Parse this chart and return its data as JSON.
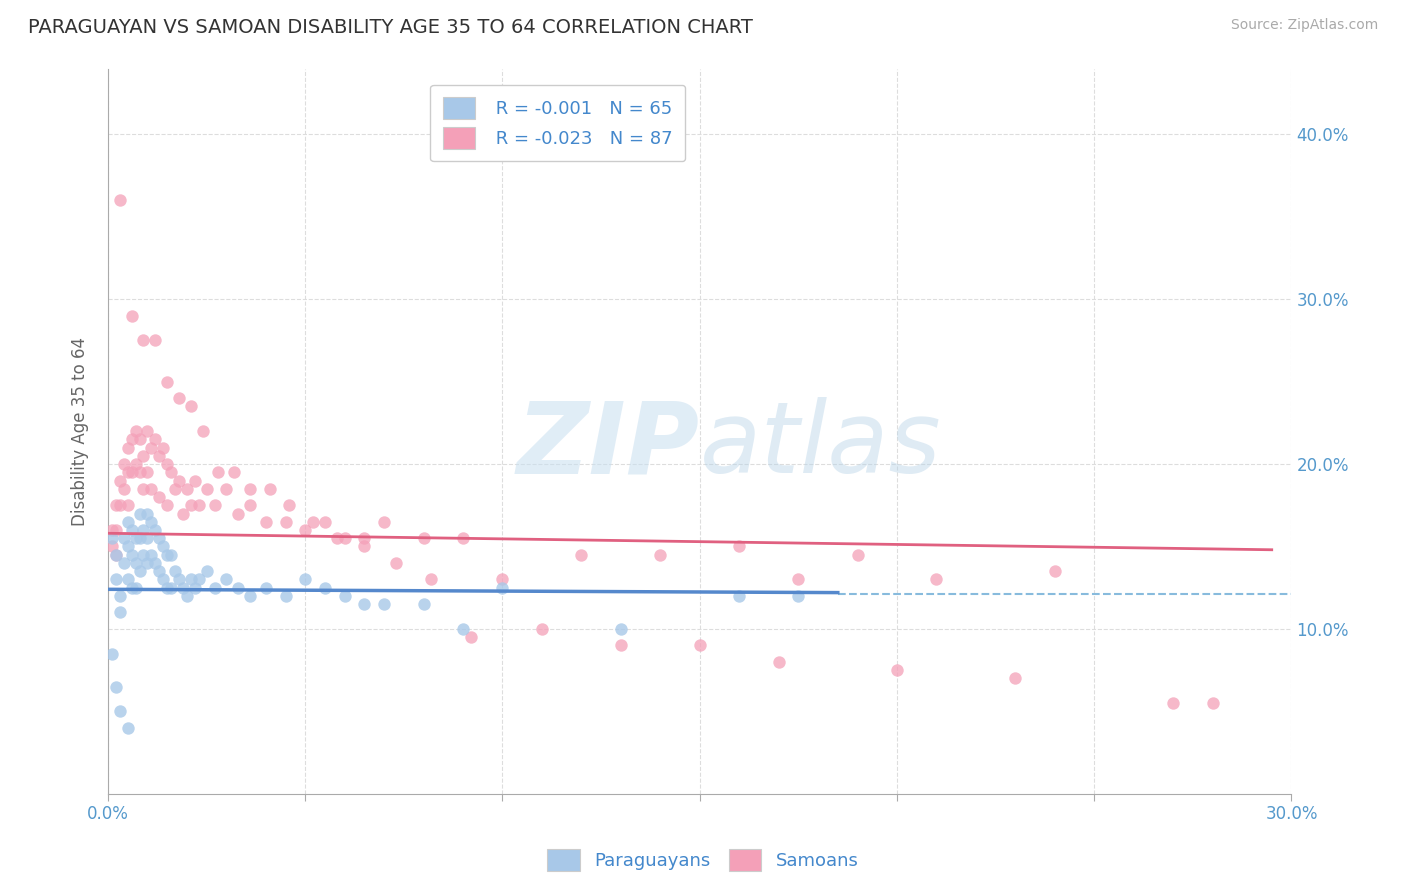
{
  "title": "PARAGUAYAN VS SAMOAN DISABILITY AGE 35 TO 64 CORRELATION CHART",
  "source": "Source: ZipAtlas.com",
  "ylabel": "Disability Age 35 to 64",
  "xlim": [
    0.0,
    0.3
  ],
  "ylim": [
    0.0,
    0.44
  ],
  "legend_r1": "R = -0.001",
  "legend_n1": "N = 65",
  "legend_r2": "R = -0.023",
  "legend_n2": "N = 87",
  "color_blue": "#a8c8e8",
  "color_pink": "#f4a0b8",
  "color_blue_line": "#5588cc",
  "color_pink_line": "#e06080",
  "color_dashed": "#88bbdd",
  "watermark_zip": "ZIP",
  "watermark_atlas": "atlas",
  "blue_line_x_end": 0.185,
  "pink_line_x_end": 0.295,
  "pink_line_y_start": 0.158,
  "pink_line_y_end": 0.148,
  "blue_line_y_start": 0.124,
  "blue_line_y_end": 0.122,
  "dashed_line_y": 0.121,
  "paraguayan_x": [
    0.001,
    0.002,
    0.002,
    0.003,
    0.003,
    0.004,
    0.004,
    0.005,
    0.005,
    0.005,
    0.006,
    0.006,
    0.006,
    0.007,
    0.007,
    0.007,
    0.008,
    0.008,
    0.008,
    0.009,
    0.009,
    0.01,
    0.01,
    0.01,
    0.011,
    0.011,
    0.012,
    0.012,
    0.013,
    0.013,
    0.014,
    0.014,
    0.015,
    0.015,
    0.016,
    0.016,
    0.017,
    0.018,
    0.019,
    0.02,
    0.021,
    0.022,
    0.023,
    0.025,
    0.027,
    0.03,
    0.033,
    0.036,
    0.04,
    0.045,
    0.05,
    0.055,
    0.06,
    0.065,
    0.07,
    0.08,
    0.09,
    0.1,
    0.13,
    0.16,
    0.175,
    0.001,
    0.002,
    0.003,
    0.005
  ],
  "paraguayan_y": [
    0.155,
    0.145,
    0.13,
    0.12,
    0.11,
    0.155,
    0.14,
    0.165,
    0.15,
    0.13,
    0.16,
    0.145,
    0.125,
    0.155,
    0.14,
    0.125,
    0.17,
    0.155,
    0.135,
    0.16,
    0.145,
    0.17,
    0.155,
    0.14,
    0.165,
    0.145,
    0.16,
    0.14,
    0.155,
    0.135,
    0.15,
    0.13,
    0.145,
    0.125,
    0.145,
    0.125,
    0.135,
    0.13,
    0.125,
    0.12,
    0.13,
    0.125,
    0.13,
    0.135,
    0.125,
    0.13,
    0.125,
    0.12,
    0.125,
    0.12,
    0.13,
    0.125,
    0.12,
    0.115,
    0.115,
    0.115,
    0.1,
    0.125,
    0.1,
    0.12,
    0.12,
    0.085,
    0.065,
    0.05,
    0.04
  ],
  "samoan_x": [
    0.001,
    0.001,
    0.002,
    0.002,
    0.002,
    0.003,
    0.003,
    0.004,
    0.004,
    0.005,
    0.005,
    0.005,
    0.006,
    0.006,
    0.007,
    0.007,
    0.008,
    0.008,
    0.009,
    0.009,
    0.01,
    0.01,
    0.011,
    0.011,
    0.012,
    0.013,
    0.013,
    0.014,
    0.015,
    0.015,
    0.016,
    0.017,
    0.018,
    0.019,
    0.02,
    0.021,
    0.022,
    0.023,
    0.025,
    0.027,
    0.03,
    0.033,
    0.036,
    0.04,
    0.045,
    0.05,
    0.055,
    0.06,
    0.065,
    0.07,
    0.08,
    0.09,
    0.1,
    0.12,
    0.14,
    0.16,
    0.175,
    0.19,
    0.21,
    0.24,
    0.27,
    0.003,
    0.006,
    0.009,
    0.012,
    0.015,
    0.018,
    0.021,
    0.024,
    0.028,
    0.032,
    0.036,
    0.041,
    0.046,
    0.052,
    0.058,
    0.065,
    0.073,
    0.082,
    0.092,
    0.11,
    0.13,
    0.15,
    0.17,
    0.2,
    0.23,
    0.28
  ],
  "samoan_y": [
    0.16,
    0.15,
    0.175,
    0.16,
    0.145,
    0.19,
    0.175,
    0.2,
    0.185,
    0.21,
    0.195,
    0.175,
    0.215,
    0.195,
    0.22,
    0.2,
    0.215,
    0.195,
    0.205,
    0.185,
    0.22,
    0.195,
    0.21,
    0.185,
    0.215,
    0.205,
    0.18,
    0.21,
    0.2,
    0.175,
    0.195,
    0.185,
    0.19,
    0.17,
    0.185,
    0.175,
    0.19,
    0.175,
    0.185,
    0.175,
    0.185,
    0.17,
    0.175,
    0.165,
    0.165,
    0.16,
    0.165,
    0.155,
    0.155,
    0.165,
    0.155,
    0.155,
    0.13,
    0.145,
    0.145,
    0.15,
    0.13,
    0.145,
    0.13,
    0.135,
    0.055,
    0.36,
    0.29,
    0.275,
    0.275,
    0.25,
    0.24,
    0.235,
    0.22,
    0.195,
    0.195,
    0.185,
    0.185,
    0.175,
    0.165,
    0.155,
    0.15,
    0.14,
    0.13,
    0.095,
    0.1,
    0.09,
    0.09,
    0.08,
    0.075,
    0.07,
    0.055
  ]
}
